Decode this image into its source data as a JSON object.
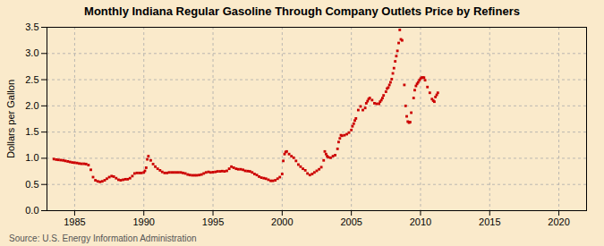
{
  "chart_data": {
    "type": "scatter",
    "title": "Monthly Indiana Regular Gasoline Through Company Outlets Price by Refiners",
    "ylabel": "Dollars per Gallon",
    "source": "Source: U.S. Energy Information Administration",
    "background_color": "#faeacb",
    "color": "#cc0000",
    "marker": "square",
    "grid": true,
    "xlim": [
      1983.0,
      2022.0
    ],
    "ylim": [
      0.0,
      3.5
    ],
    "xticks": [
      1985,
      1990,
      1995,
      2000,
      2005,
      2010,
      2015,
      2020
    ],
    "yticks": [
      {
        "value": 0.0,
        "label": "0.0"
      },
      0.5,
      {
        "value": 1.0,
        "label": "1.0"
      },
      1.5,
      {
        "value": 2.0,
        "label": "2.0"
      },
      2.5,
      {
        "value": 3.0,
        "label": "3.0"
      },
      3.5
    ],
    "x": [
      1983.5,
      1983.67,
      1983.83,
      1984.0,
      1984.17,
      1984.33,
      1984.5,
      1984.67,
      1984.83,
      1985.0,
      1985.17,
      1985.33,
      1985.5,
      1985.67,
      1985.83,
      1986.0,
      1986.17,
      1986.33,
      1986.5,
      1986.67,
      1986.83,
      1987.0,
      1987.17,
      1987.33,
      1987.5,
      1987.67,
      1987.83,
      1988.0,
      1988.17,
      1988.33,
      1988.5,
      1988.67,
      1988.83,
      1989.0,
      1989.17,
      1989.33,
      1989.5,
      1989.67,
      1989.83,
      1990.0,
      1990.08,
      1990.17,
      1990.25,
      1990.33,
      1990.5,
      1990.67,
      1990.83,
      1991.0,
      1991.17,
      1991.33,
      1991.5,
      1991.67,
      1991.83,
      1992.0,
      1992.17,
      1992.33,
      1992.5,
      1992.67,
      1992.83,
      1993.0,
      1993.17,
      1993.33,
      1993.5,
      1993.67,
      1993.83,
      1994.0,
      1994.17,
      1994.33,
      1994.5,
      1994.67,
      1994.83,
      1995.0,
      1995.17,
      1995.33,
      1995.5,
      1995.67,
      1995.83,
      1996.0,
      1996.17,
      1996.33,
      1996.5,
      1996.67,
      1996.83,
      1997.0,
      1997.17,
      1997.33,
      1997.5,
      1997.67,
      1997.83,
      1998.0,
      1998.17,
      1998.33,
      1998.5,
      1998.67,
      1998.83,
      1999.0,
      1999.17,
      1999.33,
      1999.5,
      1999.67,
      1999.83,
      2000.0,
      2000.08,
      2000.17,
      2000.25,
      2000.33,
      2000.5,
      2000.67,
      2000.83,
      2001.0,
      2001.17,
      2001.33,
      2001.5,
      2001.67,
      2001.83,
      2002.0,
      2002.17,
      2002.33,
      2002.5,
      2002.67,
      2002.83,
      2003.0,
      2003.08,
      2003.17,
      2003.25,
      2003.33,
      2003.5,
      2003.67,
      2003.83,
      2004.0,
      2004.08,
      2004.17,
      2004.25,
      2004.33,
      2004.5,
      2004.67,
      2004.83,
      2005.0,
      2005.08,
      2005.17,
      2005.25,
      2005.33,
      2005.5,
      2005.67,
      2005.83,
      2006.0,
      2006.08,
      2006.17,
      2006.25,
      2006.33,
      2006.5,
      2006.67,
      2006.83,
      2007.0,
      2007.08,
      2007.17,
      2007.25,
      2007.33,
      2007.5,
      2007.58,
      2007.67,
      2007.75,
      2007.83,
      2007.92,
      2008.0,
      2008.08,
      2008.17,
      2008.25,
      2008.33,
      2008.42,
      2008.5,
      2008.58,
      2008.67,
      2008.83,
      2008.92,
      2009.0,
      2009.08,
      2009.17,
      2009.25,
      2009.33,
      2009.5,
      2009.58,
      2009.67,
      2009.75,
      2009.83,
      2009.92,
      2010.0,
      2010.08,
      2010.17,
      2010.25,
      2010.33,
      2010.5,
      2010.67,
      2010.83,
      2010.92,
      2011.0,
      2011.08,
      2011.17,
      2011.25
    ],
    "values": [
      0.985,
      0.975,
      0.97,
      0.965,
      0.96,
      0.95,
      0.94,
      0.93,
      0.92,
      0.915,
      0.91,
      0.9,
      0.895,
      0.895,
      0.89,
      0.87,
      0.78,
      0.64,
      0.58,
      0.56,
      0.55,
      0.56,
      0.58,
      0.61,
      0.64,
      0.66,
      0.65,
      0.62,
      0.59,
      0.58,
      0.59,
      0.6,
      0.6,
      0.62,
      0.66,
      0.71,
      0.72,
      0.72,
      0.72,
      0.73,
      0.76,
      0.82,
      0.98,
      1.04,
      0.96,
      0.89,
      0.84,
      0.8,
      0.77,
      0.74,
      0.72,
      0.72,
      0.73,
      0.73,
      0.73,
      0.73,
      0.73,
      0.73,
      0.72,
      0.71,
      0.69,
      0.68,
      0.675,
      0.675,
      0.675,
      0.68,
      0.69,
      0.71,
      0.73,
      0.74,
      0.73,
      0.735,
      0.74,
      0.75,
      0.75,
      0.755,
      0.75,
      0.76,
      0.8,
      0.84,
      0.82,
      0.8,
      0.79,
      0.79,
      0.78,
      0.76,
      0.755,
      0.75,
      0.73,
      0.7,
      0.68,
      0.65,
      0.63,
      0.62,
      0.61,
      0.59,
      0.57,
      0.57,
      0.58,
      0.61,
      0.64,
      0.7,
      0.95,
      1.08,
      1.12,
      1.13,
      1.08,
      1.04,
      1.01,
      0.95,
      0.88,
      0.84,
      0.8,
      0.77,
      0.71,
      0.68,
      0.7,
      0.73,
      0.76,
      0.79,
      0.83,
      0.96,
      1.13,
      1.08,
      1.04,
      1.02,
      1.01,
      1.04,
      1.06,
      1.18,
      1.31,
      1.38,
      1.44,
      1.43,
      1.44,
      1.46,
      1.49,
      1.54,
      1.61,
      1.66,
      1.72,
      1.76,
      1.92,
      1.99,
      1.92,
      1.96,
      2.05,
      2.09,
      2.13,
      2.15,
      2.11,
      2.05,
      2.04,
      2.04,
      2.08,
      2.11,
      2.15,
      2.2,
      2.27,
      2.33,
      2.35,
      2.4,
      2.45,
      2.51,
      2.62,
      2.72,
      2.85,
      2.95,
      3.05,
      3.2,
      3.45,
      3.27,
      3.25,
      2.4,
      2.0,
      1.8,
      1.7,
      1.68,
      1.69,
      1.87,
      2.15,
      2.3,
      2.38,
      2.42,
      2.45,
      2.49,
      2.52,
      2.54,
      2.54,
      2.54,
      2.49,
      2.36,
      2.25,
      2.13,
      2.1,
      2.08,
      2.17,
      2.21,
      2.25
    ]
  }
}
